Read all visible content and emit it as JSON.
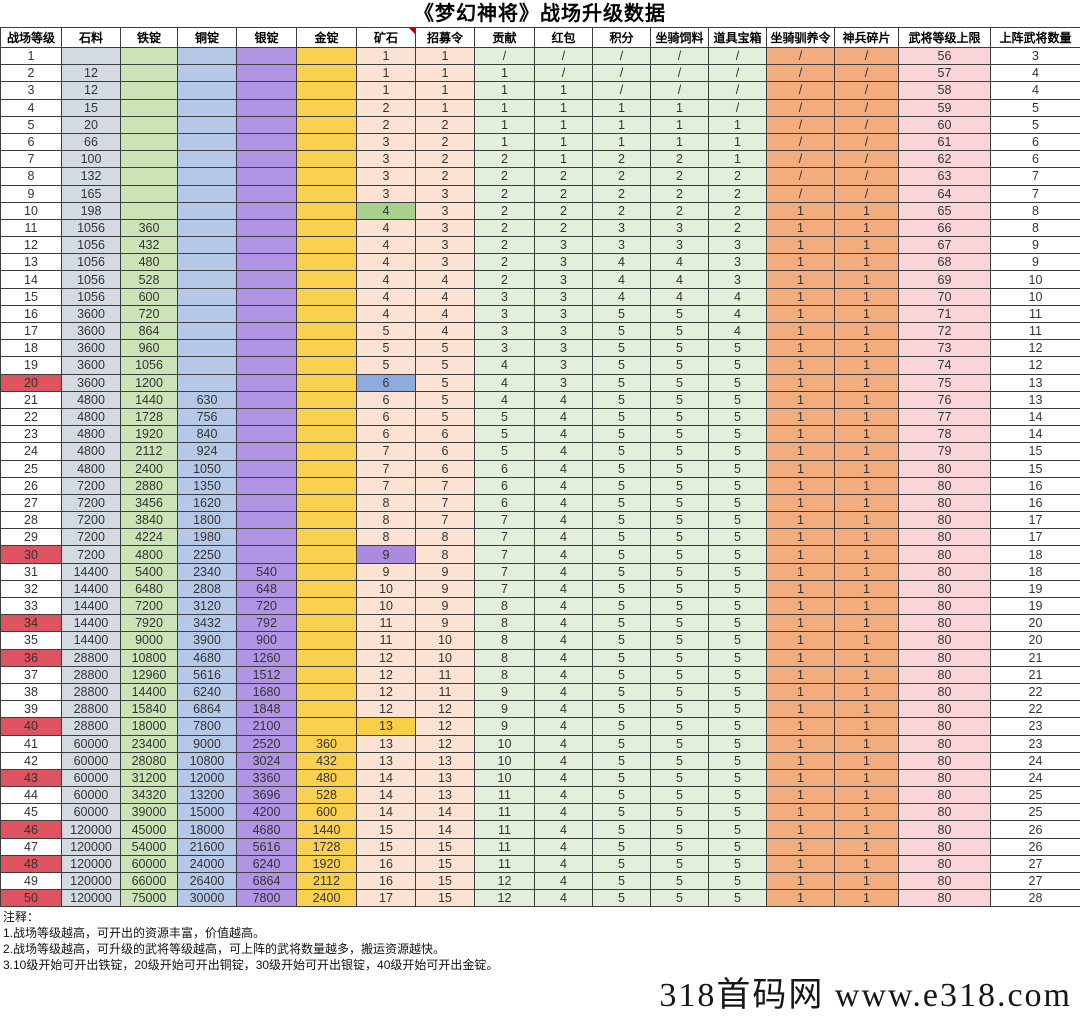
{
  "title": "《梦幻神将》战场升级数据",
  "watermark": "318首码网 www.e318.com",
  "notes": {
    "heading": "注释：",
    "items": [
      "1.战场等级越高，可开出的资源丰富，价值越高。",
      "2.战场等级越高，可升级的武将等级越高，可上阵的武将数量越多，搬运资源越快。",
      "3.10级开始可开出铁锭，20级开始可开出铜锭，30级开始可开出银锭，40级开始可开出金锭。"
    ]
  },
  "colors": {
    "stone": "#d4dae2",
    "iron": "#cbe3b7",
    "copper": "#b6c8e8",
    "silver": "#b294e4",
    "gold": "#fad050",
    "ore": "#fbe2d3",
    "green_group": "#e2efdb",
    "orange_group": "#f3ac7e",
    "cap": "#f9d5da",
    "level_red": "#df5260",
    "ore_hl_green": "#a9d08e",
    "ore_hl_blue": "#8faadc",
    "ore_hl_purple": "#a98ce0",
    "ore_hl_gold": "#f8cf47",
    "marker_red": "#c00000"
  },
  "chart_data": {
    "type": "table",
    "title": "《梦幻神将》战场升级数据",
    "columns": [
      "战场等级",
      "石料",
      "铁锭",
      "铜锭",
      "银锭",
      "金锭",
      "矿石",
      "招募令",
      "贡献",
      "红包",
      "积分",
      "坐骑饲料",
      "道具宝箱",
      "坐骑驯养令",
      "神兵碎片",
      "武将等级上限",
      "上阵武将数量"
    ],
    "red_level_rows": [
      20,
      30,
      34,
      36,
      40,
      43,
      46,
      48,
      50
    ],
    "ore_highlight_rows": {
      "10": "green",
      "20": "blue",
      "30": "purple",
      "40": "gold"
    },
    "rows": [
      [
        "1",
        "",
        "",
        "",
        "",
        "",
        "1",
        "1",
        "/",
        "/",
        "/",
        "/",
        "/",
        "/",
        "/",
        "56",
        "3"
      ],
      [
        "2",
        "12",
        "",
        "",
        "",
        "",
        "1",
        "1",
        "1",
        "/",
        "/",
        "/",
        "/",
        "/",
        "/",
        "57",
        "4"
      ],
      [
        "3",
        "12",
        "",
        "",
        "",
        "",
        "1",
        "1",
        "1",
        "1",
        "/",
        "/",
        "/",
        "/",
        "/",
        "58",
        "4"
      ],
      [
        "4",
        "15",
        "",
        "",
        "",
        "",
        "2",
        "1",
        "1",
        "1",
        "1",
        "1",
        "/",
        "/",
        "/",
        "59",
        "5"
      ],
      [
        "5",
        "20",
        "",
        "",
        "",
        "",
        "2",
        "2",
        "1",
        "1",
        "1",
        "1",
        "1",
        "/",
        "/",
        "60",
        "5"
      ],
      [
        "6",
        "66",
        "",
        "",
        "",
        "",
        "3",
        "2",
        "1",
        "1",
        "1",
        "1",
        "1",
        "/",
        "/",
        "61",
        "6"
      ],
      [
        "7",
        "100",
        "",
        "",
        "",
        "",
        "3",
        "2",
        "2",
        "1",
        "2",
        "2",
        "1",
        "/",
        "/",
        "62",
        "6"
      ],
      [
        "8",
        "132",
        "",
        "",
        "",
        "",
        "3",
        "2",
        "2",
        "2",
        "2",
        "2",
        "2",
        "/",
        "/",
        "63",
        "7"
      ],
      [
        "9",
        "165",
        "",
        "",
        "",
        "",
        "3",
        "3",
        "2",
        "2",
        "2",
        "2",
        "2",
        "/",
        "/",
        "64",
        "7"
      ],
      [
        "10",
        "198",
        "",
        "",
        "",
        "",
        "4",
        "3",
        "2",
        "2",
        "2",
        "2",
        "2",
        "1",
        "1",
        "65",
        "8"
      ],
      [
        "11",
        "1056",
        "360",
        "",
        "",
        "",
        "4",
        "3",
        "2",
        "2",
        "3",
        "3",
        "2",
        "1",
        "1",
        "66",
        "8"
      ],
      [
        "12",
        "1056",
        "432",
        "",
        "",
        "",
        "4",
        "3",
        "2",
        "3",
        "3",
        "3",
        "3",
        "1",
        "1",
        "67",
        "9"
      ],
      [
        "13",
        "1056",
        "480",
        "",
        "",
        "",
        "4",
        "3",
        "2",
        "3",
        "4",
        "4",
        "3",
        "1",
        "1",
        "68",
        "9"
      ],
      [
        "14",
        "1056",
        "528",
        "",
        "",
        "",
        "4",
        "4",
        "2",
        "3",
        "4",
        "4",
        "3",
        "1",
        "1",
        "69",
        "10"
      ],
      [
        "15",
        "1056",
        "600",
        "",
        "",
        "",
        "4",
        "4",
        "3",
        "3",
        "4",
        "4",
        "4",
        "1",
        "1",
        "70",
        "10"
      ],
      [
        "16",
        "3600",
        "720",
        "",
        "",
        "",
        "4",
        "4",
        "3",
        "3",
        "5",
        "5",
        "4",
        "1",
        "1",
        "71",
        "11"
      ],
      [
        "17",
        "3600",
        "864",
        "",
        "",
        "",
        "5",
        "4",
        "3",
        "3",
        "5",
        "5",
        "4",
        "1",
        "1",
        "72",
        "11"
      ],
      [
        "18",
        "3600",
        "960",
        "",
        "",
        "",
        "5",
        "5",
        "3",
        "3",
        "5",
        "5",
        "5",
        "1",
        "1",
        "73",
        "12"
      ],
      [
        "19",
        "3600",
        "1056",
        "",
        "",
        "",
        "5",
        "5",
        "4",
        "3",
        "5",
        "5",
        "5",
        "1",
        "1",
        "74",
        "12"
      ],
      [
        "20",
        "3600",
        "1200",
        "",
        "",
        "",
        "6",
        "5",
        "4",
        "3",
        "5",
        "5",
        "5",
        "1",
        "1",
        "75",
        "13"
      ],
      [
        "21",
        "4800",
        "1440",
        "630",
        "",
        "",
        "6",
        "5",
        "4",
        "4",
        "5",
        "5",
        "5",
        "1",
        "1",
        "76",
        "13"
      ],
      [
        "22",
        "4800",
        "1728",
        "756",
        "",
        "",
        "6",
        "5",
        "5",
        "4",
        "5",
        "5",
        "5",
        "1",
        "1",
        "77",
        "14"
      ],
      [
        "23",
        "4800",
        "1920",
        "840",
        "",
        "",
        "6",
        "6",
        "5",
        "4",
        "5",
        "5",
        "5",
        "1",
        "1",
        "78",
        "14"
      ],
      [
        "24",
        "4800",
        "2112",
        "924",
        "",
        "",
        "7",
        "6",
        "5",
        "4",
        "5",
        "5",
        "5",
        "1",
        "1",
        "79",
        "15"
      ],
      [
        "25",
        "4800",
        "2400",
        "1050",
        "",
        "",
        "7",
        "6",
        "6",
        "4",
        "5",
        "5",
        "5",
        "1",
        "1",
        "80",
        "15"
      ],
      [
        "26",
        "7200",
        "2880",
        "1350",
        "",
        "",
        "7",
        "7",
        "6",
        "4",
        "5",
        "5",
        "5",
        "1",
        "1",
        "80",
        "16"
      ],
      [
        "27",
        "7200",
        "3456",
        "1620",
        "",
        "",
        "8",
        "7",
        "6",
        "4",
        "5",
        "5",
        "5",
        "1",
        "1",
        "80",
        "16"
      ],
      [
        "28",
        "7200",
        "3840",
        "1800",
        "",
        "",
        "8",
        "7",
        "7",
        "4",
        "5",
        "5",
        "5",
        "1",
        "1",
        "80",
        "17"
      ],
      [
        "29",
        "7200",
        "4224",
        "1980",
        "",
        "",
        "8",
        "8",
        "7",
        "4",
        "5",
        "5",
        "5",
        "1",
        "1",
        "80",
        "17"
      ],
      [
        "30",
        "7200",
        "4800",
        "2250",
        "",
        "",
        "9",
        "8",
        "7",
        "4",
        "5",
        "5",
        "5",
        "1",
        "1",
        "80",
        "18"
      ],
      [
        "31",
        "14400",
        "5400",
        "2340",
        "540",
        "",
        "9",
        "9",
        "7",
        "4",
        "5",
        "5",
        "5",
        "1",
        "1",
        "80",
        "18"
      ],
      [
        "32",
        "14400",
        "6480",
        "2808",
        "648",
        "",
        "10",
        "9",
        "7",
        "4",
        "5",
        "5",
        "5",
        "1",
        "1",
        "80",
        "19"
      ],
      [
        "33",
        "14400",
        "7200",
        "3120",
        "720",
        "",
        "10",
        "9",
        "8",
        "4",
        "5",
        "5",
        "5",
        "1",
        "1",
        "80",
        "19"
      ],
      [
        "34",
        "14400",
        "7920",
        "3432",
        "792",
        "",
        "11",
        "9",
        "8",
        "4",
        "5",
        "5",
        "5",
        "1",
        "1",
        "80",
        "20"
      ],
      [
        "35",
        "14400",
        "9000",
        "3900",
        "900",
        "",
        "11",
        "10",
        "8",
        "4",
        "5",
        "5",
        "5",
        "1",
        "1",
        "80",
        "20"
      ],
      [
        "36",
        "28800",
        "10800",
        "4680",
        "1260",
        "",
        "12",
        "10",
        "8",
        "4",
        "5",
        "5",
        "5",
        "1",
        "1",
        "80",
        "21"
      ],
      [
        "37",
        "28800",
        "12960",
        "5616",
        "1512",
        "",
        "12",
        "11",
        "8",
        "4",
        "5",
        "5",
        "5",
        "1",
        "1",
        "80",
        "21"
      ],
      [
        "38",
        "28800",
        "14400",
        "6240",
        "1680",
        "",
        "12",
        "11",
        "9",
        "4",
        "5",
        "5",
        "5",
        "1",
        "1",
        "80",
        "22"
      ],
      [
        "39",
        "28800",
        "15840",
        "6864",
        "1848",
        "",
        "12",
        "12",
        "9",
        "4",
        "5",
        "5",
        "5",
        "1",
        "1",
        "80",
        "22"
      ],
      [
        "40",
        "28800",
        "18000",
        "7800",
        "2100",
        "",
        "13",
        "12",
        "9",
        "4",
        "5",
        "5",
        "5",
        "1",
        "1",
        "80",
        "23"
      ],
      [
        "41",
        "60000",
        "23400",
        "9000",
        "2520",
        "360",
        "13",
        "12",
        "10",
        "4",
        "5",
        "5",
        "5",
        "1",
        "1",
        "80",
        "23"
      ],
      [
        "42",
        "60000",
        "28080",
        "10800",
        "3024",
        "432",
        "13",
        "13",
        "10",
        "4",
        "5",
        "5",
        "5",
        "1",
        "1",
        "80",
        "24"
      ],
      [
        "43",
        "60000",
        "31200",
        "12000",
        "3360",
        "480",
        "14",
        "13",
        "10",
        "4",
        "5",
        "5",
        "5",
        "1",
        "1",
        "80",
        "24"
      ],
      [
        "44",
        "60000",
        "34320",
        "13200",
        "3696",
        "528",
        "14",
        "13",
        "11",
        "4",
        "5",
        "5",
        "5",
        "1",
        "1",
        "80",
        "25"
      ],
      [
        "45",
        "60000",
        "39000",
        "15000",
        "4200",
        "600",
        "14",
        "14",
        "11",
        "4",
        "5",
        "5",
        "5",
        "1",
        "1",
        "80",
        "25"
      ],
      [
        "46",
        "120000",
        "45000",
        "18000",
        "4680",
        "1440",
        "15",
        "14",
        "11",
        "4",
        "5",
        "5",
        "5",
        "1",
        "1",
        "80",
        "26"
      ],
      [
        "47",
        "120000",
        "54000",
        "21600",
        "5616",
        "1728",
        "15",
        "15",
        "11",
        "4",
        "5",
        "5",
        "5",
        "1",
        "1",
        "80",
        "26"
      ],
      [
        "48",
        "120000",
        "60000",
        "24000",
        "6240",
        "1920",
        "16",
        "15",
        "11",
        "4",
        "5",
        "5",
        "5",
        "1",
        "1",
        "80",
        "27"
      ],
      [
        "49",
        "120000",
        "66000",
        "26400",
        "6864",
        "2112",
        "16",
        "15",
        "12",
        "4",
        "5",
        "5",
        "5",
        "1",
        "1",
        "80",
        "27"
      ],
      [
        "50",
        "120000",
        "75000",
        "30000",
        "7800",
        "2400",
        "17",
        "15",
        "12",
        "4",
        "5",
        "5",
        "5",
        "1",
        "1",
        "80",
        "28"
      ]
    ]
  }
}
